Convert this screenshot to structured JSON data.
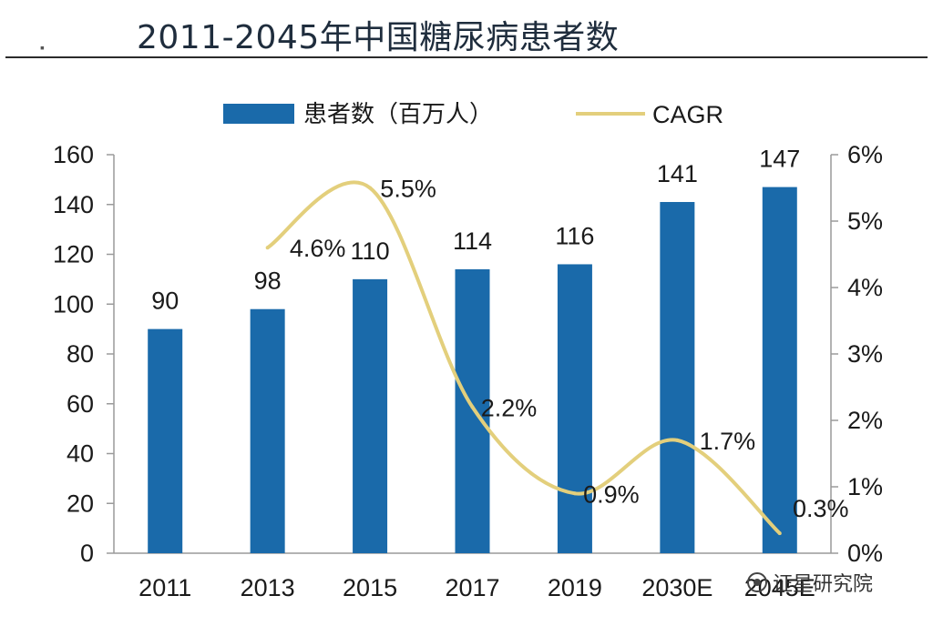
{
  "page": {
    "title": "2011-2045年中国糖尿病患者数",
    "bullet": "▪",
    "watermark": "证星研究院",
    "watermark_icon": "wechat-icon"
  },
  "colors": {
    "bar": "#1a6aaa",
    "line": "#e3cf7c",
    "axis": "#9a9a9a",
    "text": "#1a1a1a"
  },
  "chart_data": {
    "type": "bar",
    "title": "2011-2045年中国糖尿病患者数",
    "categories": [
      "2011",
      "2013",
      "2015",
      "2017",
      "2019",
      "2030E",
      "2045E"
    ],
    "series": [
      {
        "name": "患者数（百万人）",
        "type": "bar",
        "axis": "left",
        "values": [
          90,
          98,
          110,
          114,
          116,
          141,
          147
        ]
      },
      {
        "name": "CAGR",
        "type": "line",
        "axis": "right",
        "x": [
          "2013",
          "2015",
          "2017",
          "2019",
          "2030E",
          "2045E"
        ],
        "values": [
          4.6,
          5.5,
          2.2,
          0.9,
          1.7,
          0.3
        ]
      }
    ],
    "bar_labels": [
      "90",
      "98",
      "110",
      "114",
      "116",
      "141",
      "147"
    ],
    "line_labels": [
      "4.6%",
      "5.5%",
      "2.2%",
      "0.9%",
      "1.7%",
      "0.3%"
    ],
    "y_left": {
      "min": 0,
      "max": 160,
      "ticks": [
        "0",
        "20",
        "40",
        "60",
        "80",
        "100",
        "120",
        "140",
        "160"
      ]
    },
    "y_right": {
      "min": 0,
      "max": 6,
      "ticks": [
        "0%",
        "1%",
        "2%",
        "3%",
        "4%",
        "5%",
        "6%"
      ]
    },
    "legend": {
      "position": "top",
      "bar_label": "患者数（百万人）",
      "line_label": "CAGR"
    },
    "xlabel": "",
    "ylabel": "",
    "grid": false
  }
}
